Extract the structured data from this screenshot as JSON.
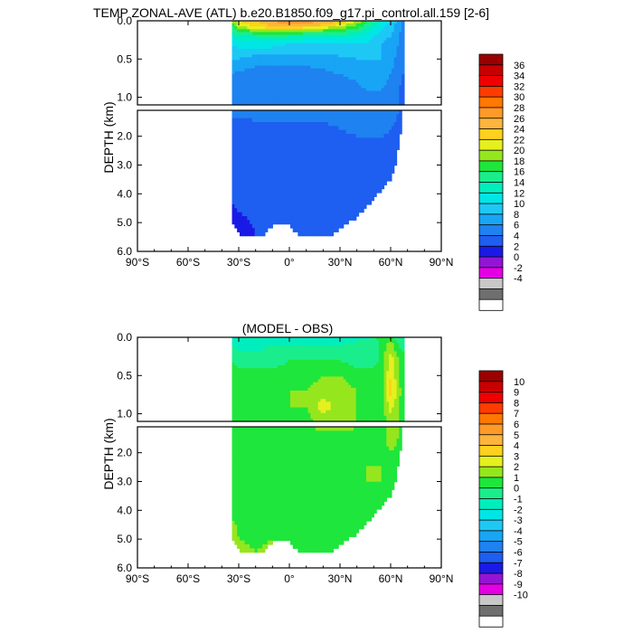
{
  "figure": {
    "title": "TEMP ZONAL-AVE (ATL) b.e20.B1850.f09_g17.pi_control.all.159 [2-6]",
    "palette": [
      "#ffffff",
      "#6f6f6f",
      "#c8c8c8",
      "#e400e4",
      "#9414d6",
      "#1a1ae6",
      "#1e5ef0",
      "#1e82f0",
      "#19a5f5",
      "#1ec8f5",
      "#00e6e6",
      "#00eebe",
      "#1aee8c",
      "#1ee63c",
      "#96e61e",
      "#e6f01e",
      "#ffd01e",
      "#ffb43c",
      "#ff9a28",
      "#ff7800",
      "#ff3c00",
      "#f00000",
      "#c80000",
      "#9b0000"
    ]
  },
  "chart_data": [
    {
      "type": "heatmap",
      "name": "top",
      "title": "",
      "xlabel": "",
      "ylabel": "DEPTH (km)",
      "x_ticks": [
        "90°S",
        "60°S",
        "30°S",
        "0°",
        "30°N",
        "60°N",
        "90°N"
      ],
      "x_tick_values": [
        -90,
        -60,
        -30,
        0,
        30,
        60,
        90
      ],
      "y_ticks_upper": [
        "0.0",
        "0.5",
        "1.0"
      ],
      "y_tick_values_upper": [
        0.0,
        0.5,
        1.0
      ],
      "y_ticks_lower": [
        "2.0",
        "3.0",
        "4.0",
        "5.0",
        "6.0"
      ],
      "y_tick_values_lower": [
        2.0,
        3.0,
        4.0,
        5.0,
        6.0
      ],
      "upper_depth_range": [
        0,
        1.1
      ],
      "lower_depth_range": [
        1.1,
        6.0
      ],
      "xlim": [
        -90,
        90
      ],
      "colorbar_labels": [
        "36",
        "34",
        "32",
        "30",
        "28",
        "26",
        "24",
        "22",
        "20",
        "18",
        "16",
        "14",
        "12",
        "10",
        "8",
        "6",
        "4",
        "2",
        "0",
        "-2",
        "-4"
      ],
      "colorbar_levels": [
        38,
        36,
        34,
        32,
        30,
        28,
        26,
        24,
        22,
        20,
        18,
        16,
        14,
        12,
        10,
        8,
        6,
        4,
        2,
        0,
        -2,
        -4,
        -6
      ],
      "colorbar_colors": [
        "#9b0000",
        "#c80000",
        "#f00000",
        "#ff3c00",
        "#ff7800",
        "#ff9a28",
        "#ffb43c",
        "#ffd01e",
        "#e6f01e",
        "#96e61e",
        "#1ee63c",
        "#1aee8c",
        "#00eebe",
        "#00e6e6",
        "#1ec8f5",
        "#19a5f5",
        "#1e82f0",
        "#1e5ef0",
        "#1a1ae6",
        "#9414d6",
        "#e400e4",
        "#c8c8c8",
        "#6f6f6f",
        "#ffffff"
      ],
      "field": {
        "lat": [
          -34,
          -30,
          -20,
          -10,
          0,
          10,
          20,
          30,
          40,
          45,
          50,
          55,
          60,
          65,
          67
        ],
        "depth": [
          0.0,
          0.05,
          0.1,
          0.2,
          0.3,
          0.5,
          0.7,
          0.9,
          1.1,
          1.5,
          2.0,
          2.5,
          3.0,
          4.0,
          5.0,
          5.4
        ],
        "values": [
          [
            18,
            22,
            24,
            26,
            27,
            27,
            26,
            24,
            20,
            17,
            14,
            12,
            10,
            7,
            5
          ],
          [
            17,
            21,
            23,
            25,
            26,
            26,
            24,
            22,
            18,
            16,
            13,
            11,
            9,
            7,
            5
          ],
          [
            15,
            18,
            21,
            22,
            22,
            21,
            20,
            18,
            16,
            14,
            12,
            10,
            9,
            7,
            5
          ],
          [
            12,
            13,
            14,
            15,
            14,
            13,
            13,
            13,
            12,
            11,
            10,
            9,
            8,
            6,
            5
          ],
          [
            10,
            11,
            11,
            11,
            10,
            10,
            10,
            10,
            10,
            10,
            9,
            8,
            7,
            6,
            4
          ],
          [
            8,
            8,
            7,
            7,
            7,
            7,
            7,
            7.5,
            8,
            8,
            8,
            8,
            7,
            5,
            4
          ],
          [
            6,
            5.5,
            5,
            5,
            5,
            5,
            5.5,
            6,
            6.5,
            7,
            7,
            7,
            6,
            5,
            4
          ],
          [
            5,
            4.5,
            4.5,
            4.5,
            4.5,
            4.5,
            4.5,
            5,
            5.5,
            6,
            6,
            6,
            5,
            4,
            3.5
          ],
          [
            4.5,
            4.2,
            4.2,
            4.2,
            4.2,
            4.2,
            4.2,
            4.5,
            5,
            5,
            5,
            5,
            4.5,
            4,
            3.5
          ],
          [
            3.8,
            3.8,
            4,
            4,
            4,
            4,
            4,
            4.2,
            4.5,
            4.5,
            4.5,
            4.5,
            4.2,
            3.8,
            3.3
          ],
          [
            3.3,
            3.4,
            3.5,
            3.5,
            3.5,
            3.5,
            3.6,
            3.8,
            4,
            4,
            4,
            4,
            3.8,
            3.3,
            3
          ],
          [
            2.9,
            2.9,
            3,
            3,
            3,
            3,
            3,
            3.2,
            3.4,
            3.4,
            3.4,
            3.4,
            3.3,
            3,
            2.8
          ],
          [
            2.6,
            2.6,
            2.6,
            2.6,
            2.6,
            2.6,
            2.7,
            2.8,
            2.9,
            2.9,
            2.9,
            2.9,
            2.8,
            2.6,
            2.5
          ],
          [
            2.3,
            2.3,
            2.3,
            2.3,
            2.3,
            2.3,
            2.3,
            2.4,
            2.4,
            2.4,
            2.4,
            2.4,
            2.3,
            2.2,
            2.2
          ],
          [
            1.5,
            1.8,
            2.1,
            2.2,
            2.2,
            2.2,
            2.2,
            2.2,
            2.2,
            2.2,
            2.2,
            2.2,
            2.2,
            2.1,
            2.1
          ],
          [
            1.2,
            1.6,
            2,
            2.1,
            2.1,
            2.1,
            2.1,
            2.1,
            2.1,
            2.1,
            2.1,
            2.1,
            2.1,
            2,
            2
          ]
        ],
        "bottom": [
          [
            -34,
            5.0
          ],
          [
            -30,
            5.4
          ],
          [
            -25,
            5.4
          ],
          [
            -15,
            5.4
          ],
          [
            -10,
            5.1
          ],
          [
            -5,
            5.1
          ],
          [
            0,
            5.1
          ],
          [
            5,
            5.4
          ],
          [
            15,
            5.4
          ],
          [
            25,
            5.4
          ],
          [
            30,
            5.2
          ],
          [
            35,
            5.0
          ],
          [
            40,
            4.8
          ],
          [
            45,
            4.5
          ],
          [
            50,
            4.2
          ],
          [
            55,
            3.8
          ],
          [
            60,
            3.5
          ],
          [
            63,
            3.0
          ],
          [
            65,
            2.2
          ],
          [
            67,
            1.5
          ],
          [
            68,
            0.0
          ]
        ]
      }
    },
    {
      "type": "heatmap",
      "name": "bottom",
      "title": "(MODEL - OBS)",
      "xlabel": "",
      "ylabel": "DEPTH (km)",
      "x_ticks": [
        "90°S",
        "60°S",
        "30°S",
        "0°",
        "30°N",
        "60°N",
        "90°N"
      ],
      "x_tick_values": [
        -90,
        -60,
        -30,
        0,
        30,
        60,
        90
      ],
      "y_ticks_upper": [
        "0.0",
        "0.5",
        "1.0"
      ],
      "y_tick_values_upper": [
        0.0,
        0.5,
        1.0
      ],
      "y_ticks_lower": [
        "2.0",
        "3.0",
        "4.0",
        "5.0",
        "6.0"
      ],
      "y_tick_values_lower": [
        2.0,
        3.0,
        4.0,
        5.0,
        6.0
      ],
      "upper_depth_range": [
        0,
        1.1
      ],
      "lower_depth_range": [
        1.1,
        6.0
      ],
      "xlim": [
        -90,
        90
      ],
      "colorbar_labels": [
        "10",
        "9",
        "8",
        "7",
        "6",
        "5",
        "4",
        "3",
        "2",
        "1",
        "0",
        "-1",
        "-2",
        "-3",
        "-4",
        "-5",
        "-6",
        "-7",
        "-8",
        "-9",
        "-10"
      ],
      "colorbar_levels": [
        11,
        10,
        9,
        8,
        7,
        6,
        5,
        4,
        3,
        2,
        1,
        0,
        -1,
        -2,
        -3,
        -4,
        -5,
        -6,
        -7,
        -8,
        -9,
        -10,
        -11
      ],
      "colorbar_colors": [
        "#9b0000",
        "#c80000",
        "#f00000",
        "#ff3c00",
        "#ff7800",
        "#ff9a28",
        "#ffb43c",
        "#ffd01e",
        "#e6f01e",
        "#96e61e",
        "#1ee63c",
        "#1aee8c",
        "#00eebe",
        "#00e6e6",
        "#1ec8f5",
        "#19a5f5",
        "#1e82f0",
        "#1e5ef0",
        "#1a1ae6",
        "#9414d6",
        "#e400e4",
        "#c8c8c8",
        "#6f6f6f",
        "#ffffff"
      ],
      "field": {
        "lat": [
          -34,
          -30,
          -20,
          -10,
          0,
          10,
          20,
          30,
          40,
          45,
          50,
          55,
          60,
          65,
          67
        ],
        "depth": [
          0.0,
          0.05,
          0.1,
          0.2,
          0.3,
          0.5,
          0.7,
          0.9,
          1.1,
          1.5,
          2.0,
          2.5,
          3.0,
          4.0,
          5.0,
          5.4
        ],
        "values": [
          [
            -1.5,
            -1.5,
            -2,
            -1.5,
            -1,
            -1.5,
            -1.5,
            -1.5,
            -1,
            -1.5,
            -0.5,
            1,
            0.5,
            -1,
            -0.5
          ],
          [
            -1.5,
            -1.5,
            -2,
            -1.5,
            -1,
            -1.5,
            -1.5,
            -1.5,
            -1,
            -1,
            -0.5,
            0.5,
            1,
            -0.5,
            -0.5
          ],
          [
            -1,
            -1.5,
            -1.5,
            -1,
            -1,
            -1,
            -1,
            -1,
            -0.5,
            -0.5,
            -0.5,
            0.5,
            1.5,
            0,
            -0.5
          ],
          [
            -0.5,
            -1,
            -1,
            -0.5,
            -0.5,
            -0.5,
            -0.5,
            -0.5,
            -0.5,
            -0.5,
            -0.5,
            0.5,
            2,
            0.5,
            0
          ],
          [
            0,
            -0.5,
            -0.5,
            -0.5,
            0,
            0,
            0,
            0,
            -0.5,
            -0.5,
            -0.5,
            0.5,
            2.5,
            1,
            0
          ],
          [
            0.5,
            0.5,
            0.5,
            0.5,
            0.5,
            0.5,
            1,
            1,
            0.5,
            0.5,
            0.5,
            0.5,
            3,
            1,
            0
          ],
          [
            0.5,
            0.5,
            0.5,
            0.5,
            1,
            1,
            1.5,
            1.5,
            1,
            0.5,
            0.5,
            0.5,
            3.5,
            1.5,
            0.5
          ],
          [
            0.5,
            0.5,
            1,
            1,
            1,
            1,
            2.5,
            1.5,
            1,
            0.5,
            0.5,
            0.5,
            2.5,
            1,
            0.5
          ],
          [
            0.5,
            0.5,
            0.5,
            0.5,
            0.5,
            0.5,
            1.5,
            1.5,
            1,
            0.5,
            0.5,
            0.5,
            1.5,
            1,
            0.5
          ],
          [
            0.5,
            0.5,
            0.5,
            0.5,
            0.5,
            0.5,
            0.5,
            0.5,
            0.5,
            0.5,
            0.5,
            0.5,
            1.5,
            1,
            0.5
          ],
          [
            0.5,
            0.5,
            0.5,
            0.5,
            0.5,
            0.5,
            0.5,
            0.5,
            0.5,
            0.5,
            0.5,
            0.5,
            1,
            0.5,
            0.5
          ],
          [
            0.5,
            0.5,
            0.5,
            0.5,
            0.5,
            0.5,
            0.5,
            0.5,
            0.5,
            1,
            1,
            1,
            0.5,
            0.5,
            0.5
          ],
          [
            0.5,
            0.5,
            0.5,
            0.5,
            0.5,
            0.5,
            0.5,
            0.5,
            0.5,
            1,
            1,
            1,
            0.5,
            0.5,
            0.5
          ],
          [
            0.5,
            0.5,
            0.5,
            0.5,
            0.5,
            0.5,
            0.5,
            0.5,
            0.5,
            0.5,
            0.5,
            0.5,
            0.5,
            0.5,
            0.5
          ],
          [
            2,
            1,
            0.5,
            1,
            0.5,
            0.5,
            0.5,
            0.5,
            0.5,
            0.5,
            0.5,
            0.5,
            0.5,
            0.5,
            0.5
          ],
          [
            3,
            1.5,
            1,
            1.5,
            1,
            0.5,
            0.5,
            0.5,
            0.5,
            0.5,
            0.5,
            0.5,
            0.5,
            0.5,
            0.5
          ]
        ],
        "bottom": [
          [
            -34,
            5.0
          ],
          [
            -30,
            5.4
          ],
          [
            -25,
            5.4
          ],
          [
            -15,
            5.4
          ],
          [
            -10,
            5.1
          ],
          [
            -5,
            5.1
          ],
          [
            0,
            5.1
          ],
          [
            5,
            5.4
          ],
          [
            15,
            5.4
          ],
          [
            25,
            5.4
          ],
          [
            30,
            5.2
          ],
          [
            35,
            5.0
          ],
          [
            40,
            4.8
          ],
          [
            45,
            4.5
          ],
          [
            50,
            4.2
          ],
          [
            55,
            3.8
          ],
          [
            60,
            3.5
          ],
          [
            63,
            3.0
          ],
          [
            65,
            2.2
          ],
          [
            67,
            1.5
          ],
          [
            68,
            0.0
          ]
        ]
      }
    }
  ]
}
